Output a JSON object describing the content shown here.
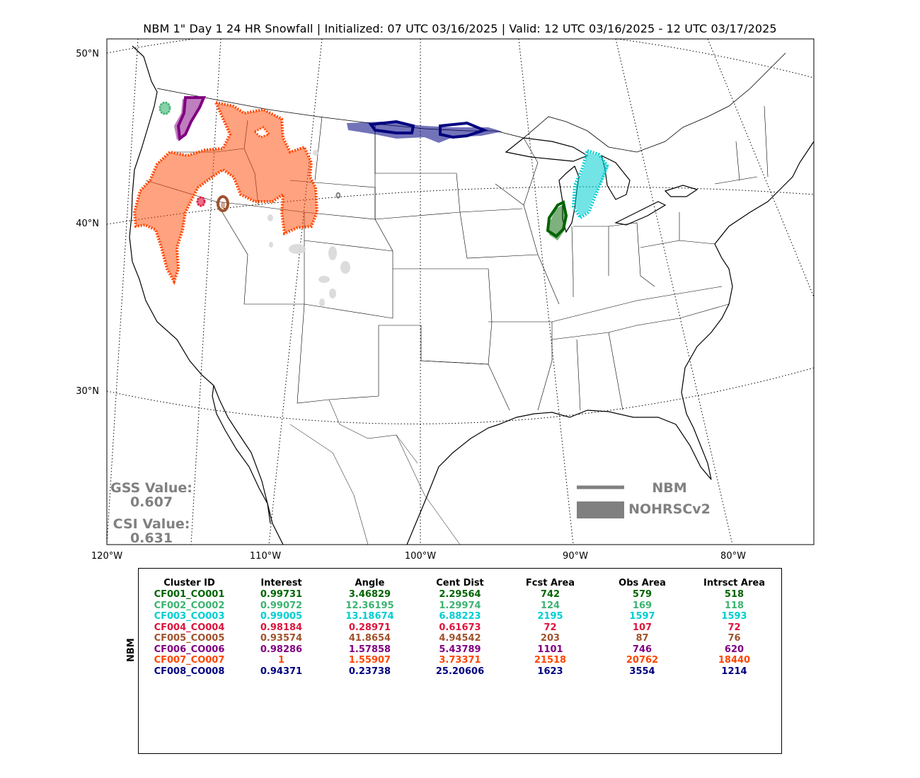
{
  "title": "NBM 1\" Day 1 24 HR Snowfall | Initialized: 07 UTC 03/16/2025 | Valid: 12 UTC 03/16/2025 - 12 UTC 03/17/2025",
  "map": {
    "lat_labels": [
      "50°N",
      "40°N",
      "30°N"
    ],
    "lon_labels": [
      "120°W",
      "110°W",
      "100°W",
      "90°W",
      "80°W"
    ],
    "colors": {
      "forecast_outline": "#808080",
      "observed_fill": "#808080",
      "land": "#ffffff",
      "borders": "#000000"
    }
  },
  "scores": {
    "gss_label": "GSS Value:",
    "gss_value": "0.607",
    "csi_label": "CSI Value:",
    "csi_value": "0.631"
  },
  "legend": {
    "line_label": "NBM",
    "fill_label": "NOHRSCv2"
  },
  "table": {
    "side_label": "NBM",
    "headers": [
      "Cluster ID",
      "Interest",
      "Angle",
      "Cent Dist",
      "Fcst Area",
      "Obs Area",
      "Intrsct Area"
    ],
    "rows": [
      {
        "color": "#006400",
        "cells": [
          "CF001_CO001",
          "0.99731",
          "3.46829",
          "2.29564",
          "742",
          "579",
          "518"
        ]
      },
      {
        "color": "#3cb371",
        "cells": [
          "CF002_CO002",
          "0.99072",
          "12.36195",
          "1.29974",
          "124",
          "169",
          "118"
        ]
      },
      {
        "color": "#00ced1",
        "cells": [
          "CF003_CO003",
          "0.99005",
          "13.18674",
          "6.88223",
          "2195",
          "1597",
          "1593"
        ]
      },
      {
        "color": "#dc143c",
        "cells": [
          "CF004_CO004",
          "0.98184",
          "0.28971",
          "0.61673",
          "72",
          "107",
          "72"
        ]
      },
      {
        "color": "#a0522d",
        "cells": [
          "CF005_CO005",
          "0.93574",
          "41.8654",
          "4.94542",
          "203",
          "87",
          "76"
        ]
      },
      {
        "color": "#800080",
        "cells": [
          "CF006_CO006",
          "0.98286",
          "1.57858",
          "5.43789",
          "1101",
          "746",
          "620"
        ]
      },
      {
        "color": "#ff4500",
        "cells": [
          "CF007_CO007",
          "1",
          "1.55907",
          "3.73371",
          "21518",
          "20762",
          "18440"
        ]
      },
      {
        "color": "#000080",
        "cells": [
          "CF008_CO008",
          "0.94371",
          "0.23738",
          "25.20606",
          "1623",
          "3554",
          "1214"
        ]
      }
    ]
  }
}
